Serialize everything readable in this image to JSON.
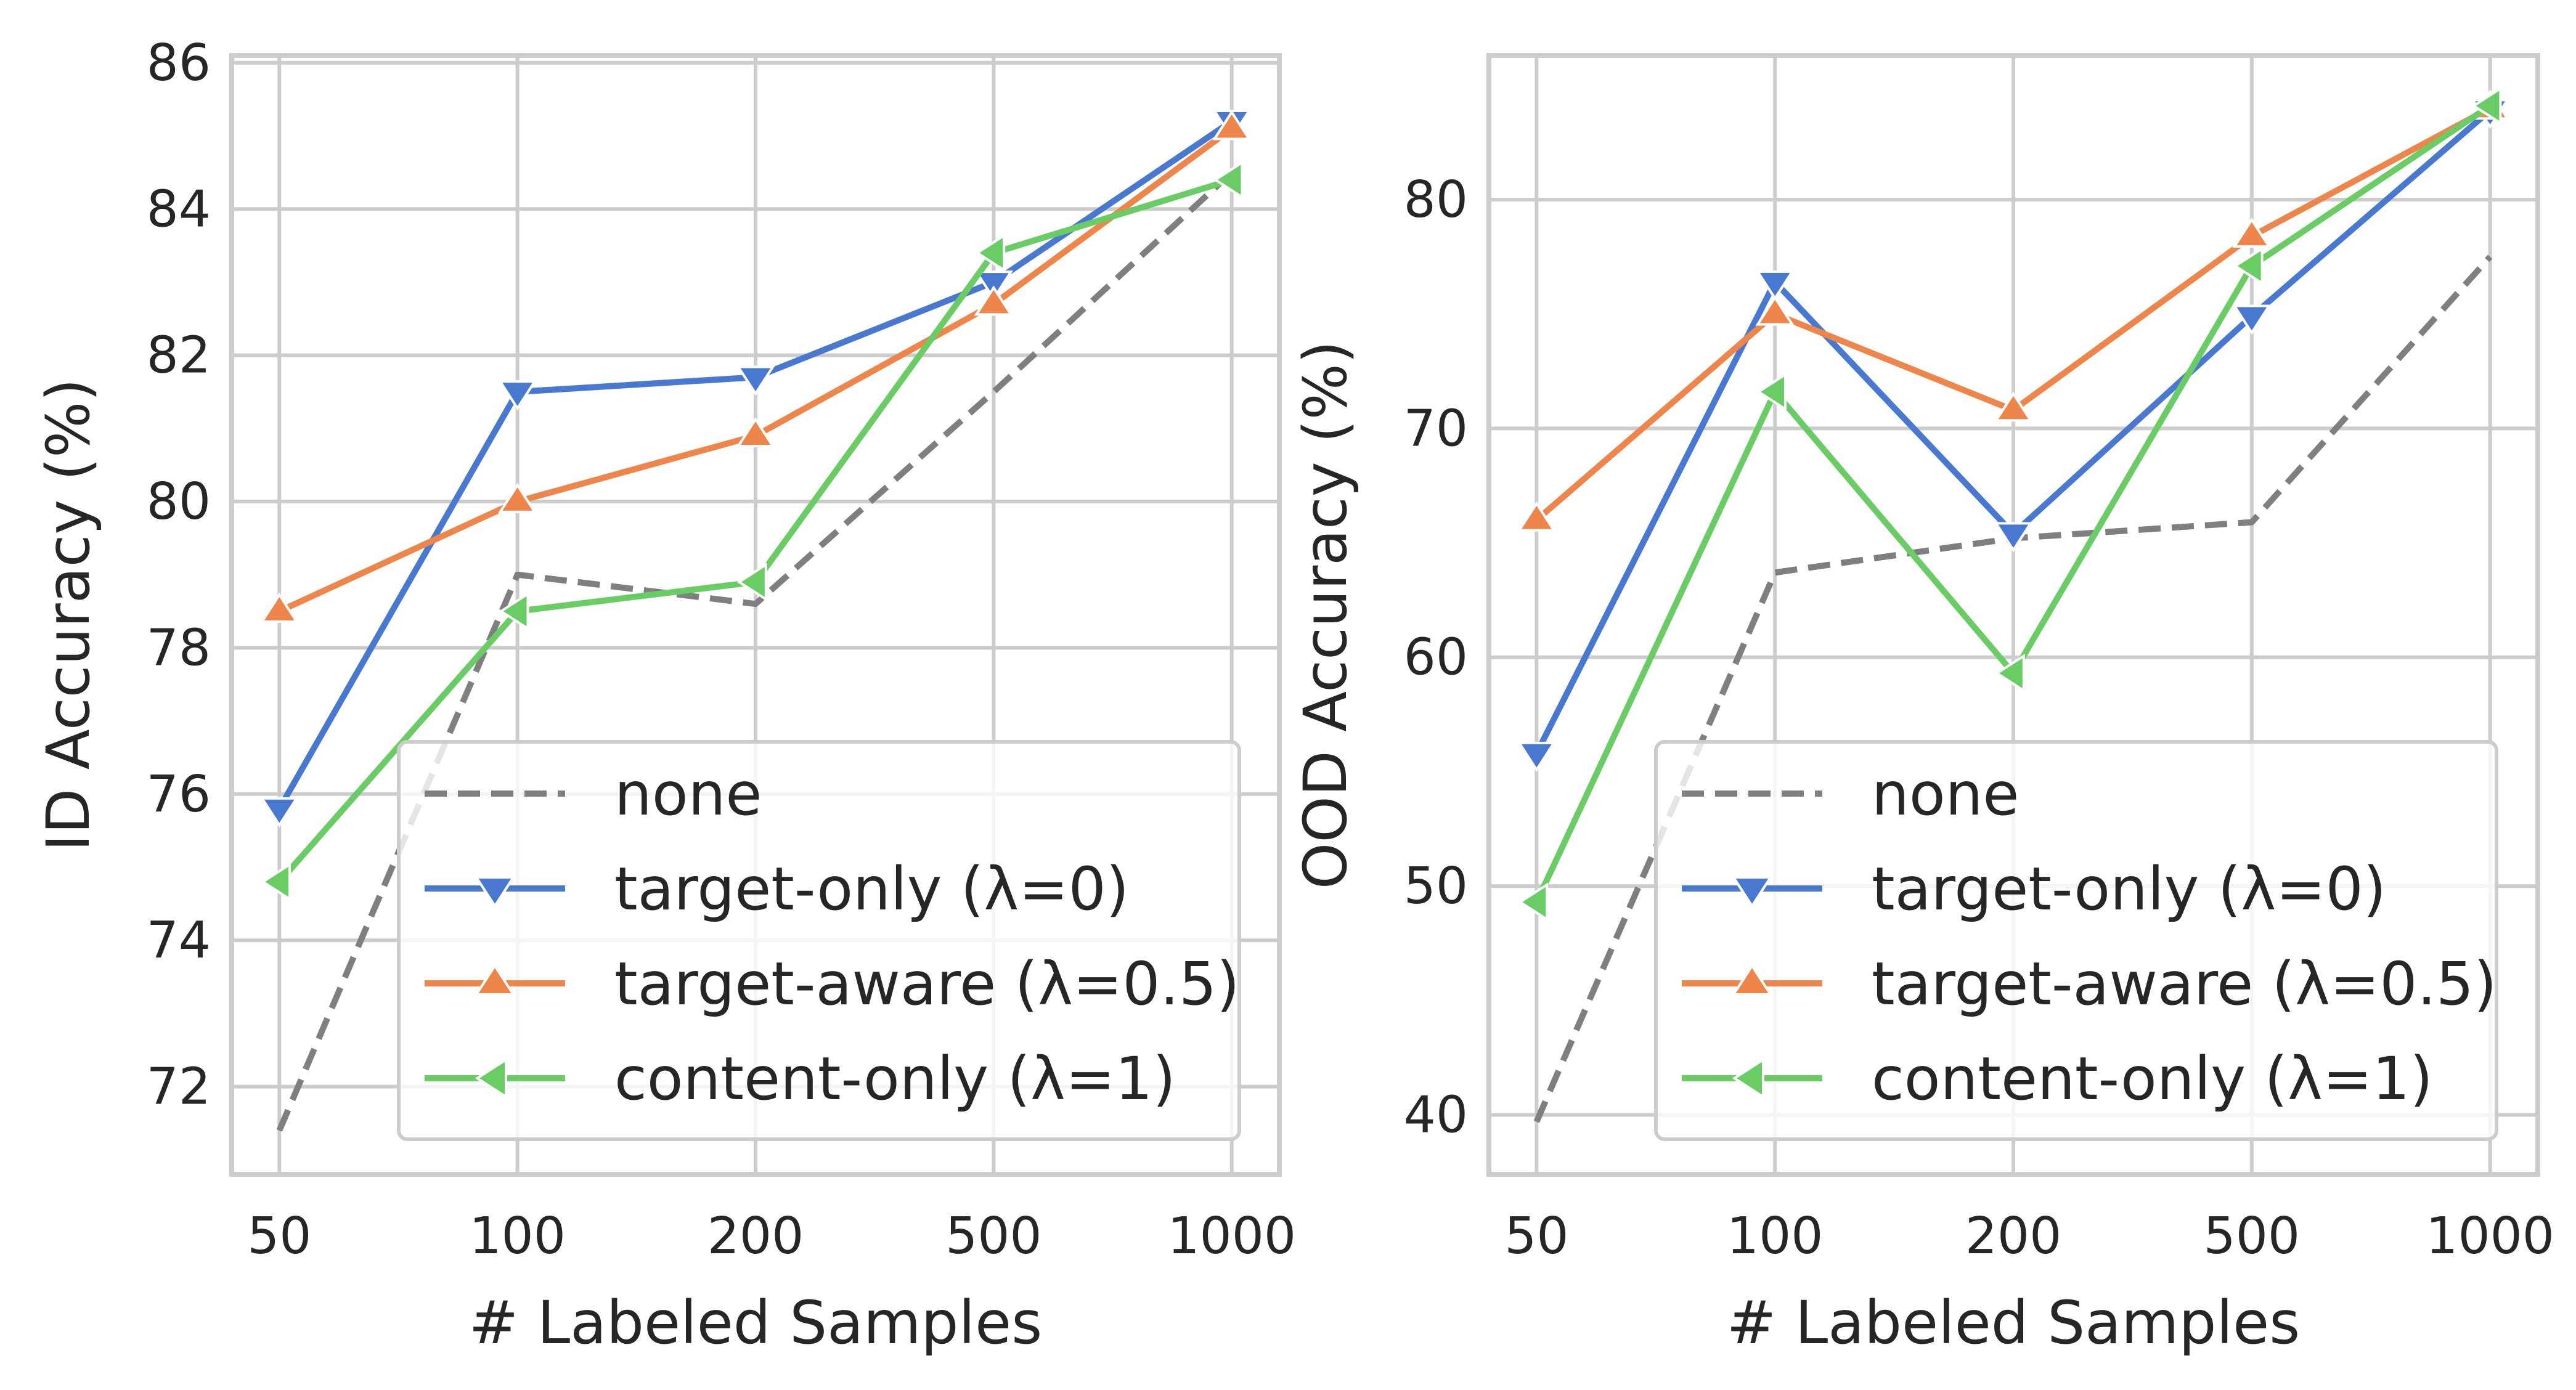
{
  "chart_data": [
    {
      "type": "line",
      "categories": [
        "50",
        "100",
        "200",
        "500",
        "1000"
      ],
      "xlabel": "# Labeled Samples",
      "ylabel": "ID Accuracy (%)",
      "ylim": [
        70.8,
        86.1
      ],
      "yticks": [
        72,
        74,
        76,
        78,
        80,
        82,
        84,
        86
      ],
      "grid": true,
      "legend_position": "lower-right",
      "series": [
        {
          "name": "none",
          "color": "#7f7f7f",
          "style": "dashed",
          "marker": "none",
          "values": [
            71.4,
            79.0,
            78.6,
            81.5,
            84.5
          ]
        },
        {
          "name": "target-only (λ=0)",
          "color": "#4878d0",
          "style": "solid",
          "marker": "triangle-down",
          "values": [
            75.8,
            81.5,
            81.7,
            83.0,
            85.2
          ]
        },
        {
          "name": "target-aware (λ=0.5)",
          "color": "#ee854a",
          "style": "solid",
          "marker": "triangle-up",
          "values": [
            78.5,
            80.0,
            80.9,
            82.7,
            85.1
          ]
        },
        {
          "name": "content-only (λ=1)",
          "color": "#6acc64",
          "style": "solid",
          "marker": "triangle-left",
          "values": [
            74.8,
            78.5,
            78.9,
            83.4,
            84.4
          ]
        }
      ]
    },
    {
      "type": "line",
      "categories": [
        "50",
        "100",
        "200",
        "500",
        "1000"
      ],
      "xlabel": "# Labeled Samples",
      "ylabel": "OOD Accuracy (%)",
      "ylim": [
        37.4,
        86.3
      ],
      "yticks": [
        40,
        50,
        60,
        70,
        80
      ],
      "grid": true,
      "legend_position": "lower-right",
      "series": [
        {
          "name": "none",
          "color": "#7f7f7f",
          "style": "dashed",
          "marker": "none",
          "values": [
            39.7,
            63.7,
            65.2,
            65.9,
            77.5
          ]
        },
        {
          "name": "target-only (λ=0)",
          "color": "#4878d0",
          "style": "solid",
          "marker": "triangle-down",
          "values": [
            55.8,
            76.4,
            65.4,
            74.9,
            83.9
          ]
        },
        {
          "name": "target-aware (λ=0.5)",
          "color": "#ee854a",
          "style": "solid",
          "marker": "triangle-up",
          "values": [
            66.0,
            75.0,
            70.8,
            78.4,
            84.0
          ]
        },
        {
          "name": "content-only (λ=1)",
          "color": "#6acc64",
          "style": "solid",
          "marker": "triangle-left",
          "values": [
            49.3,
            71.6,
            59.3,
            77.1,
            84.1
          ]
        }
      ]
    }
  ]
}
